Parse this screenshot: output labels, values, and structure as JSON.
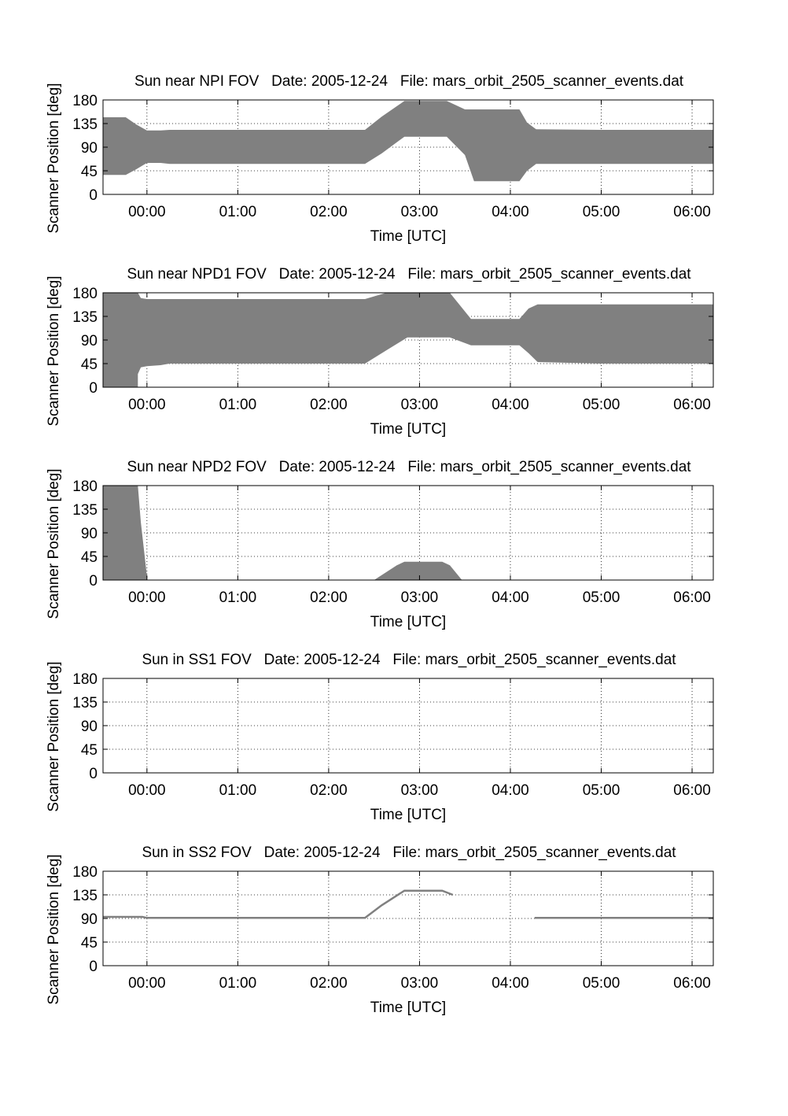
{
  "chart_data": [
    {
      "type": "area",
      "title": "Sun near NPI FOV   Date: 2005-12-24   File: mars_orbit_2505_scanner_events.dat",
      "xlabel": "Time [UTC]",
      "ylabel": "Scanner Position [deg]",
      "x_ticks": [
        "00:00",
        "01:00",
        "02:00",
        "03:00",
        "04:00",
        "05:00",
        "06:00"
      ],
      "y_ticks": [
        "0",
        "45",
        "90",
        "135",
        "180"
      ],
      "xlim": [
        "-00:29",
        "06:14"
      ],
      "ylim": [
        0,
        180
      ],
      "grid": true,
      "fill_color": "#808080",
      "bands": [
        {
          "x": [
            "-00:29",
            "-00:14",
            "-00:07",
            "00:00",
            "00:09",
            "00:15",
            "01:00",
            "02:00",
            "02:24",
            "02:35",
            "02:50",
            "03:00",
            "03:18",
            "03:30",
            "03:36",
            "04:00",
            "04:06",
            "04:11",
            "04:17",
            "05:00",
            "06:00",
            "06:14"
          ],
          "low": [
            37,
            37,
            48,
            60,
            60,
            58,
            58,
            58,
            58,
            78,
            110,
            110,
            110,
            75,
            25,
            25,
            25,
            45,
            58,
            58,
            58,
            58
          ],
          "high": [
            147,
            147,
            133,
            122,
            122,
            123,
            123,
            123,
            123,
            148,
            178,
            178,
            178,
            162,
            162,
            162,
            162,
            137,
            124,
            123,
            123,
            123
          ]
        }
      ]
    },
    {
      "type": "area",
      "title": "Sun near NPD1 FOV   Date: 2005-12-24   File: mars_orbit_2505_scanner_events.dat",
      "xlabel": "Time [UTC]",
      "ylabel": "Scanner Position [deg]",
      "x_ticks": [
        "00:00",
        "01:00",
        "02:00",
        "03:00",
        "04:00",
        "05:00",
        "06:00"
      ],
      "y_ticks": [
        "0",
        "45",
        "90",
        "135",
        "180"
      ],
      "xlim": [
        "-00:29",
        "06:14"
      ],
      "ylim": [
        0,
        180
      ],
      "grid": true,
      "fill_color": "#808080",
      "bands": [
        {
          "x": [
            "-00:29",
            "-00:06",
            "-00:06",
            "-00:04",
            "00:00",
            "00:09",
            "00:15",
            "01:00",
            "02:00",
            "02:24",
            "02:38",
            "02:52",
            "03:00",
            "03:20",
            "03:34",
            "04:00",
            "04:06",
            "04:12",
            "04:18",
            "05:00",
            "06:00",
            "06:14"
          ],
          "low": [
            0,
            0,
            25,
            38,
            40,
            42,
            45,
            45,
            45,
            45,
            70,
            95,
            95,
            95,
            80,
            80,
            80,
            65,
            48,
            45,
            45,
            45
          ],
          "high": [
            180,
            180,
            180,
            170,
            168,
            168,
            168,
            168,
            168,
            168,
            180,
            180,
            180,
            180,
            130,
            130,
            130,
            150,
            158,
            158,
            158,
            158
          ]
        }
      ]
    },
    {
      "type": "area",
      "title": "Sun near NPD2 FOV   Date: 2005-12-24   File: mars_orbit_2505_scanner_events.dat",
      "xlabel": "Time [UTC]",
      "ylabel": "Scanner Position [deg]",
      "x_ticks": [
        "00:00",
        "01:00",
        "02:00",
        "03:00",
        "04:00",
        "05:00",
        "06:00"
      ],
      "y_ticks": [
        "0",
        "45",
        "90",
        "135",
        "180"
      ],
      "xlim": [
        "-00:29",
        "06:14"
      ],
      "ylim": [
        0,
        180
      ],
      "grid": true,
      "fill_color": "#808080",
      "bands": [
        {
          "x": [
            "-00:29",
            "-00:06",
            "-00:04",
            "00:00",
            "00:00"
          ],
          "low": [
            0,
            0,
            0,
            0,
            0
          ],
          "high": [
            180,
            180,
            110,
            8,
            0
          ]
        },
        {
          "x": [
            "02:30",
            "02:45",
            "02:50",
            "03:00",
            "03:15",
            "03:20",
            "03:28"
          ],
          "low": [
            0,
            0,
            0,
            0,
            0,
            0,
            0
          ],
          "high": [
            0,
            28,
            35,
            35,
            35,
            28,
            0
          ]
        }
      ]
    },
    {
      "type": "area",
      "title": "Sun in SS1 FOV   Date: 2005-12-24   File: mars_orbit_2505_scanner_events.dat",
      "xlabel": "Time [UTC]",
      "ylabel": "Scanner Position [deg]",
      "x_ticks": [
        "00:00",
        "01:00",
        "02:00",
        "03:00",
        "04:00",
        "05:00",
        "06:00"
      ],
      "y_ticks": [
        "0",
        "45",
        "90",
        "135",
        "180"
      ],
      "xlim": [
        "-00:29",
        "06:14"
      ],
      "ylim": [
        0,
        180
      ],
      "grid": true,
      "fill_color": "#808080",
      "bands": []
    },
    {
      "type": "line",
      "title": "Sun in SS2 FOV   Date: 2005-12-24   File: mars_orbit_2505_scanner_events.dat",
      "xlabel": "Time [UTC]",
      "ylabel": "Scanner Position [deg]",
      "x_ticks": [
        "00:00",
        "01:00",
        "02:00",
        "03:00",
        "04:00",
        "05:00",
        "06:00"
      ],
      "y_ticks": [
        "0",
        "45",
        "90",
        "135",
        "180"
      ],
      "xlim": [
        "-00:29",
        "06:14"
      ],
      "ylim": [
        0,
        180
      ],
      "grid": true,
      "line_color": "#808080",
      "series": [
        {
          "x": [
            "-00:29",
            "-00:03",
            "00:00",
            "01:00",
            "02:00",
            "02:24",
            "02:35",
            "02:50",
            "03:00",
            "03:15",
            "03:22"
          ],
          "values": [
            93,
            93,
            91,
            91,
            91,
            91,
            115,
            143,
            143,
            143,
            135
          ]
        },
        {
          "x": [
            "04:16",
            "05:00",
            "06:00",
            "06:14"
          ],
          "values": [
            91,
            91,
            91,
            91
          ]
        }
      ]
    }
  ]
}
